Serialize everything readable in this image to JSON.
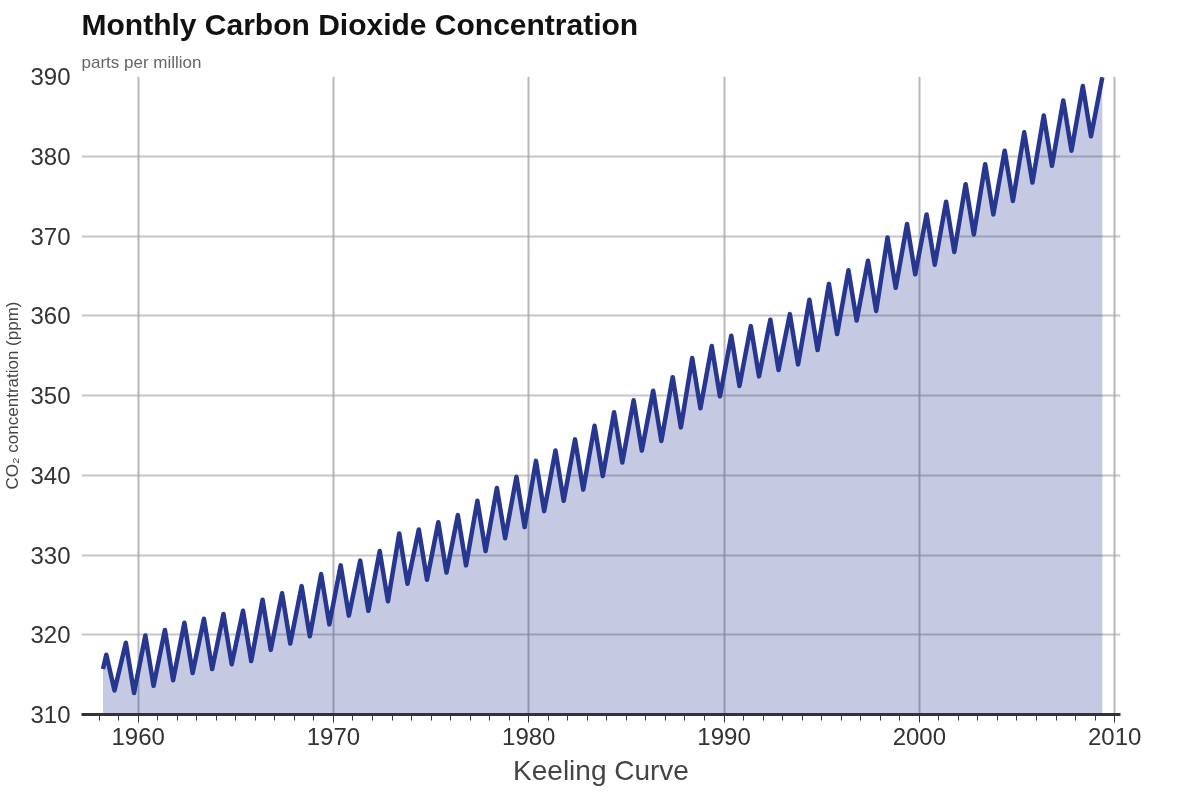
{
  "chart_data": {
    "type": "area",
    "title": "Monthly Carbon Dioxide Concentration",
    "subtitle": "parts per million",
    "ylabel": "CO₂ concentration (ppm)",
    "annotations": [
      "Keeling Curve"
    ],
    "xlim": [
      1957.1,
      2010.3
    ],
    "ylim": [
      310,
      390
    ],
    "xticks": [
      1960,
      1970,
      1980,
      1990,
      2000,
      2010
    ],
    "yticks": [
      310,
      320,
      330,
      340,
      350,
      360,
      370,
      380,
      390
    ],
    "grid": true,
    "series": [
      {
        "color": "#27368f",
        "x": [
          1958.2,
          1958.37,
          1958.79,
          1959.37,
          1959.79,
          1960.37,
          1960.79,
          1961.37,
          1961.79,
          1962.37,
          1962.79,
          1963.37,
          1963.79,
          1964.37,
          1964.79,
          1965.37,
          1965.79,
          1966.37,
          1966.79,
          1967.37,
          1967.79,
          1968.37,
          1968.79,
          1969.37,
          1969.79,
          1970.37,
          1970.79,
          1971.37,
          1971.79,
          1972.37,
          1972.79,
          1973.37,
          1973.79,
          1974.37,
          1974.79,
          1975.37,
          1975.79,
          1976.37,
          1976.79,
          1977.37,
          1977.79,
          1978.37,
          1978.79,
          1979.37,
          1979.79,
          1980.37,
          1980.79,
          1981.37,
          1981.79,
          1982.37,
          1982.79,
          1983.37,
          1983.79,
          1984.37,
          1984.79,
          1985.37,
          1985.79,
          1986.37,
          1986.79,
          1987.37,
          1987.79,
          1988.37,
          1988.79,
          1989.37,
          1989.79,
          1990.37,
          1990.79,
          1991.37,
          1991.79,
          1992.37,
          1992.79,
          1993.37,
          1993.79,
          1994.37,
          1994.79,
          1995.37,
          1995.79,
          1996.37,
          1996.79,
          1997.37,
          1997.79,
          1998.37,
          1998.79,
          1999.37,
          1999.79,
          2000.37,
          2000.79,
          2001.37,
          2001.79,
          2002.37,
          2002.79,
          2003.37,
          2003.79,
          2004.37,
          2004.79,
          2005.37,
          2005.79,
          2006.37,
          2006.79,
          2007.37,
          2007.79,
          2008.37,
          2008.79,
          2009.37
        ],
        "values": [
          315.7,
          317.5,
          313.0,
          319.0,
          312.7,
          319.9,
          313.6,
          320.6,
          314.3,
          321.5,
          315.2,
          322.0,
          315.7,
          322.6,
          316.3,
          323.0,
          316.7,
          324.4,
          318.1,
          325.2,
          318.9,
          326.1,
          319.8,
          327.6,
          321.3,
          328.7,
          322.4,
          329.3,
          323.0,
          330.5,
          324.2,
          332.7,
          326.4,
          333.2,
          326.9,
          334.1,
          327.8,
          335.0,
          328.7,
          336.8,
          330.5,
          338.4,
          332.1,
          339.8,
          333.5,
          341.8,
          335.5,
          343.1,
          336.8,
          344.5,
          338.2,
          346.2,
          339.9,
          347.9,
          341.6,
          349.4,
          343.1,
          350.6,
          344.3,
          352.3,
          346.0,
          354.7,
          348.4,
          356.2,
          349.9,
          357.5,
          351.2,
          358.7,
          352.4,
          359.5,
          353.2,
          360.2,
          353.9,
          362.0,
          355.7,
          364.0,
          357.7,
          365.7,
          359.4,
          366.9,
          360.6,
          369.8,
          363.5,
          371.5,
          365.2,
          372.7,
          366.4,
          374.3,
          368.0,
          376.5,
          370.2,
          379.0,
          372.7,
          380.7,
          374.4,
          383.0,
          376.7,
          385.1,
          378.8,
          387.0,
          380.7,
          388.8,
          382.5,
          389.9
        ]
      }
    ]
  }
}
